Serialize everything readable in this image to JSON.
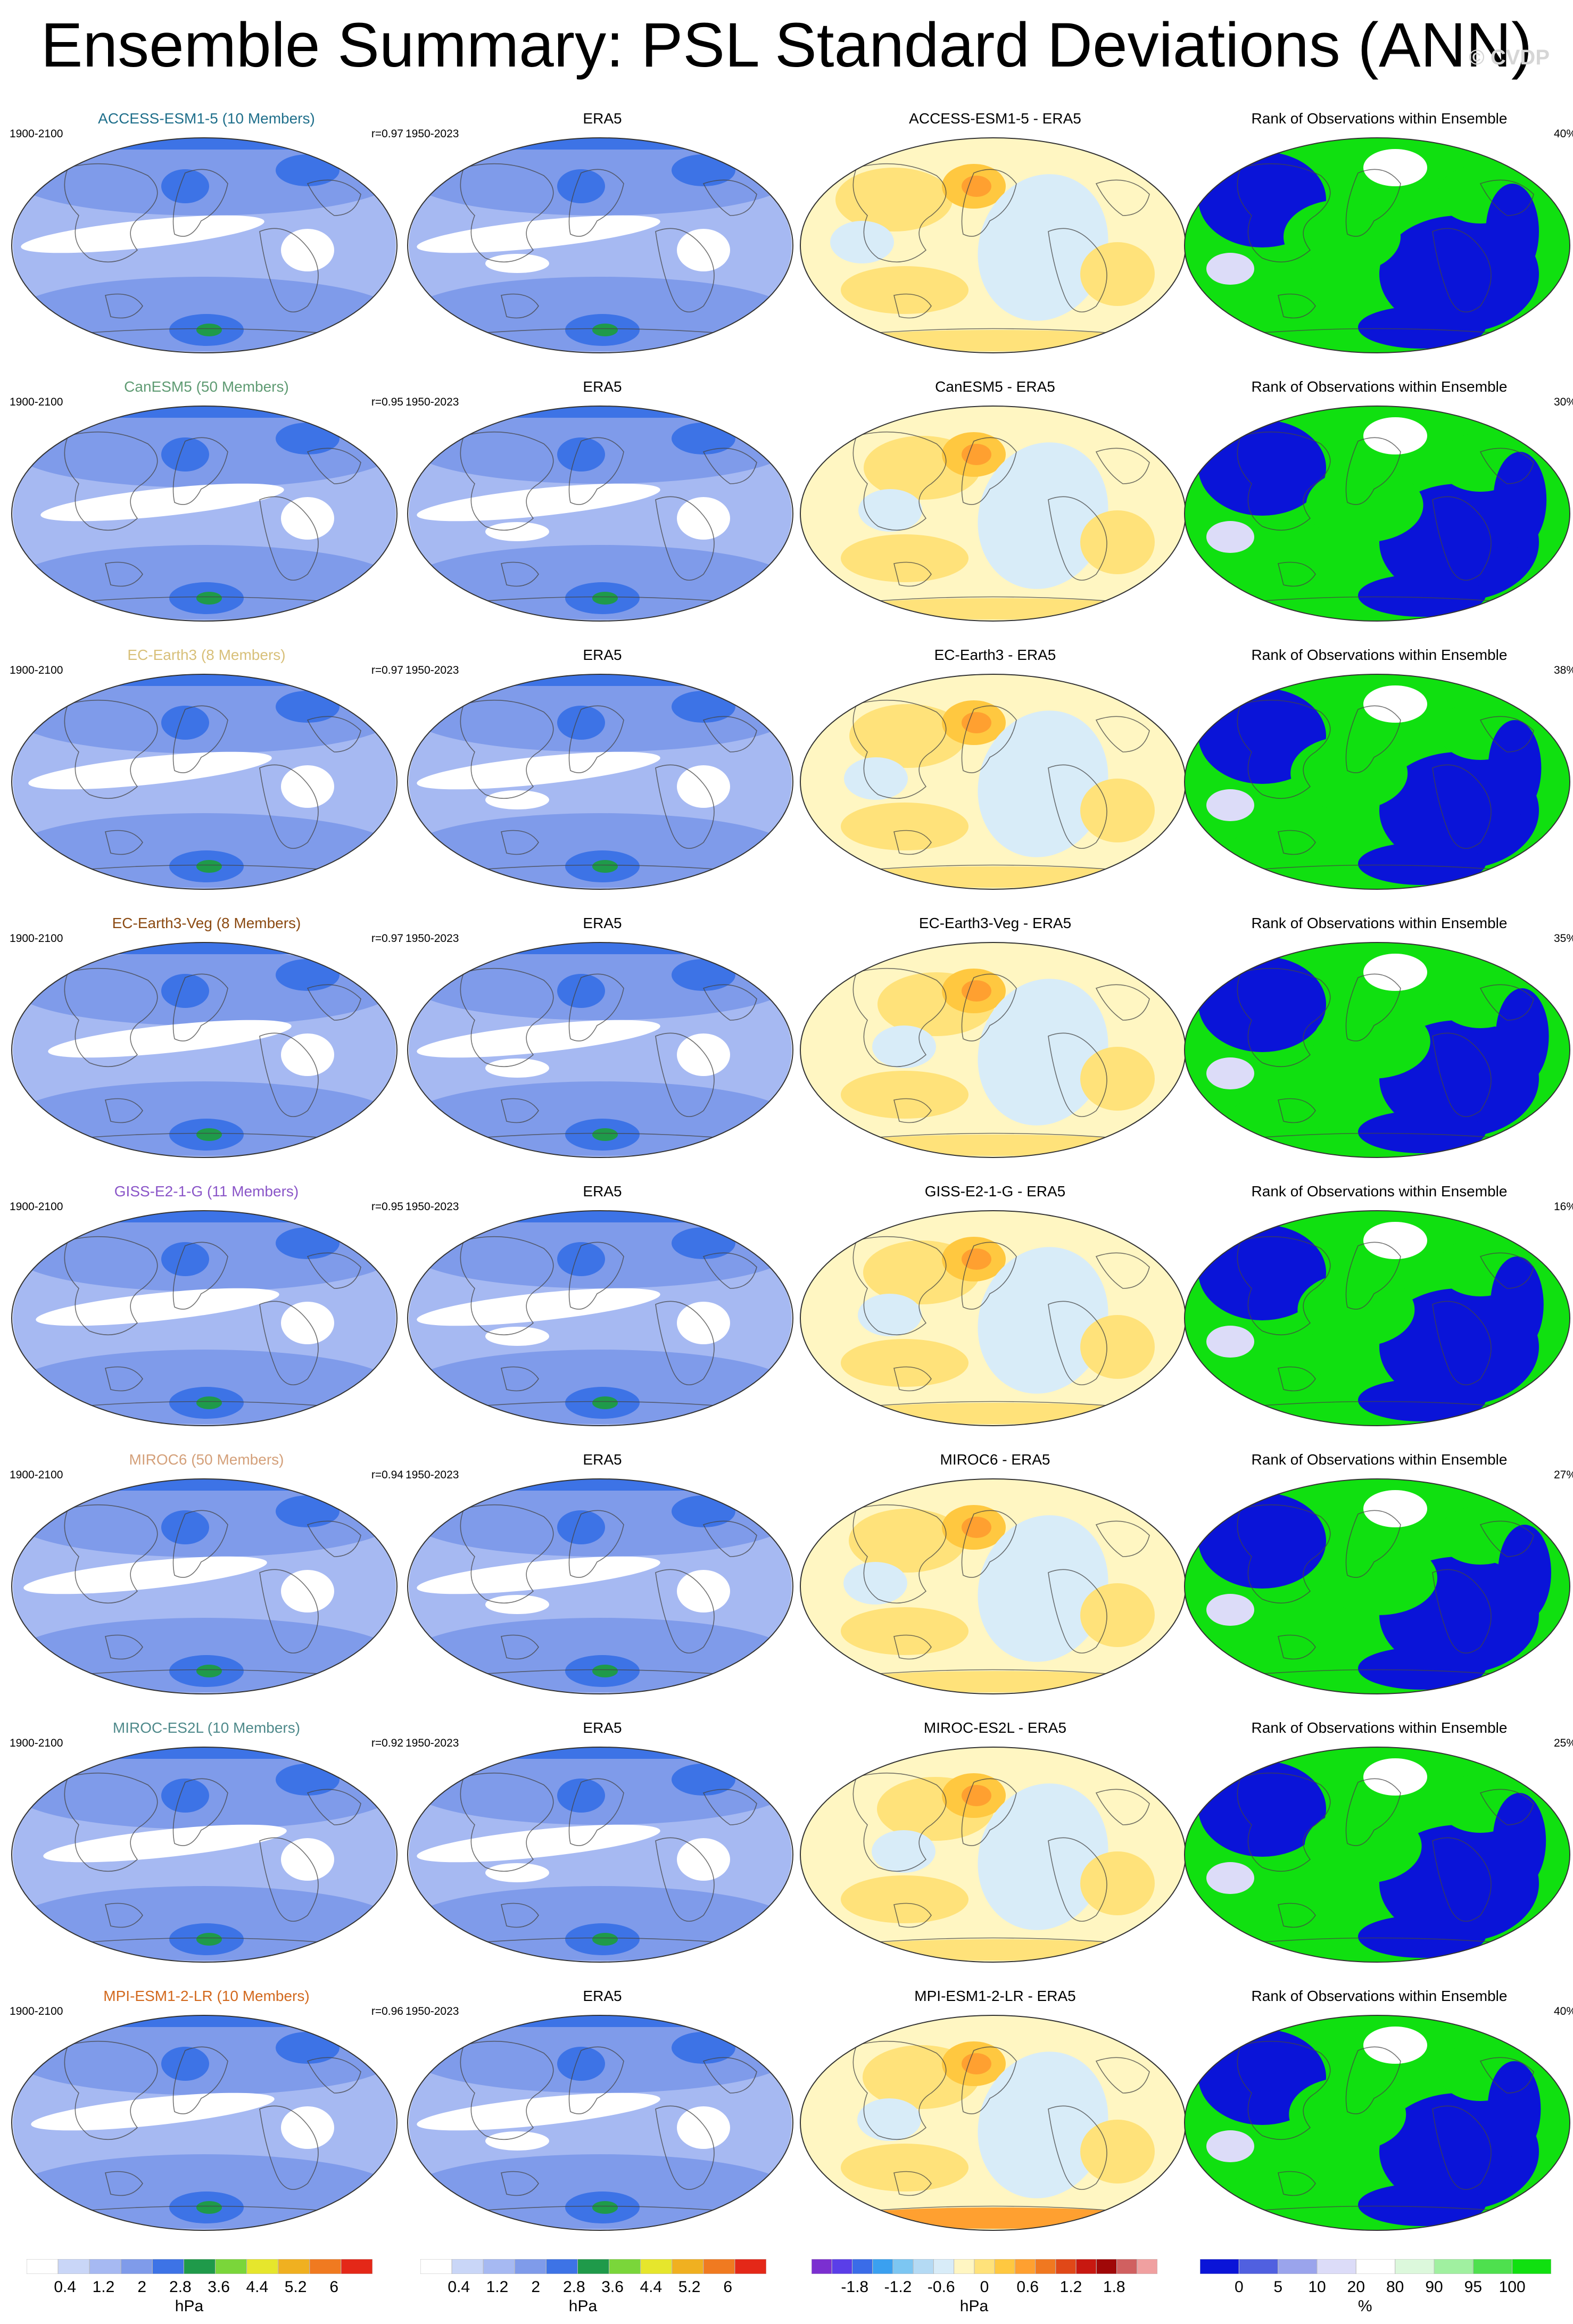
{
  "title": "Ensemble Summary: PSL Standard Deviations (ANN)",
  "watermark": "© CVDP",
  "obs_name": "ERA5",
  "obs_period": "1950-2023",
  "model_period": "1900-2100",
  "rank_title": "Rank of Observations within Ensemble",
  "rows": [
    {
      "model_label": "ACCESS-ESM1-5 (10 Members)",
      "model_color": "#1f6f8b",
      "r": "r=0.97",
      "diff_title": "ACCESS-ESM1-5 - ERA5",
      "rank_pct": "40%",
      "sd_variant": 0,
      "diff_variant": 0,
      "rank_variant": 0
    },
    {
      "model_label": "CanESM5 (50 Members)",
      "model_color": "#5f9b73",
      "r": "r=0.95",
      "diff_title": "CanESM5 - ERA5",
      "rank_pct": "30%",
      "sd_variant": 1,
      "diff_variant": 1,
      "rank_variant": 1
    },
    {
      "model_label": "EC-Earth3 (8 Members)",
      "model_color": "#d8c07a",
      "r": "r=0.97",
      "diff_title": "EC-Earth3 - ERA5",
      "rank_pct": "38%",
      "sd_variant": 2,
      "diff_variant": 2,
      "rank_variant": 2
    },
    {
      "model_label": "EC-Earth3-Veg (8 Members)",
      "model_color": "#8b4a12",
      "r": "r=0.97",
      "diff_title": "EC-Earth3-Veg - ERA5",
      "rank_pct": "35%",
      "sd_variant": 3,
      "diff_variant": 3,
      "rank_variant": 3
    },
    {
      "model_label": "GISS-E2-1-G (11 Members)",
      "model_color": "#8a55c8",
      "r": "r=0.95",
      "diff_title": "GISS-E2-1-G - ERA5",
      "rank_pct": "16%",
      "sd_variant": 4,
      "diff_variant": 4,
      "rank_variant": 4
    },
    {
      "model_label": "MIROC6 (50 Members)",
      "model_color": "#d4a07a",
      "r": "r=0.94",
      "diff_title": "MIROC6 - ERA5",
      "rank_pct": "27%",
      "sd_variant": 5,
      "diff_variant": 5,
      "rank_variant": 5
    },
    {
      "model_label": "MIROC-ES2L (10 Members)",
      "model_color": "#4f8a8b",
      "r": "r=0.92",
      "diff_title": "MIROC-ES2L - ERA5",
      "rank_pct": "25%",
      "sd_variant": 6,
      "diff_variant": 6,
      "rank_variant": 6
    },
    {
      "model_label": "MPI-ESM1-2-LR (10 Members)",
      "model_color": "#d2691e",
      "r": "r=0.96",
      "diff_title": "MPI-ESM1-2-LR - ERA5",
      "rank_pct": "40%",
      "sd_variant": 7,
      "diff_variant": 7,
      "rank_variant": 7
    }
  ],
  "colorbars": {
    "sd": {
      "unit": "hPa",
      "labels": [
        "0.4",
        "1.2",
        "2",
        "2.8",
        "3.6",
        "4.4",
        "5.2",
        "6"
      ],
      "colors": [
        "#ffffff",
        "#c9d6f7",
        "#a6b9f2",
        "#7f9bea",
        "#3d73e6",
        "#1f9a4a",
        "#7ad63a",
        "#e6e62c",
        "#f0b020",
        "#f07a20",
        "#e42818"
      ]
    },
    "diff": {
      "unit": "hPa",
      "labels": [
        "-1.8",
        "-1.2",
        "-0.6",
        "0",
        "0.6",
        "1.2",
        "1.8"
      ],
      "colors": [
        "#7b2fd0",
        "#5a3ee8",
        "#3a6ce8",
        "#3aa0f0",
        "#7cc6f2",
        "#b4daf4",
        "#d8ecf8",
        "#fff6c2",
        "#ffe27a",
        "#ffc840",
        "#ffa030",
        "#f07820",
        "#e04818",
        "#c81810",
        "#a00808",
        "#d06060",
        "#f0a0a0"
      ]
    },
    "rank": {
      "unit": "%",
      "labels": [
        "0",
        "5",
        "10",
        "20",
        "80",
        "90",
        "95",
        "100"
      ],
      "colors": [
        "#0a14d8",
        "#5060e0",
        "#9aa4ec",
        "#dcdcf8",
        "#ffffff",
        "#dcf8dc",
        "#a0f0a0",
        "#4ee04e",
        "#10e010"
      ]
    }
  }
}
